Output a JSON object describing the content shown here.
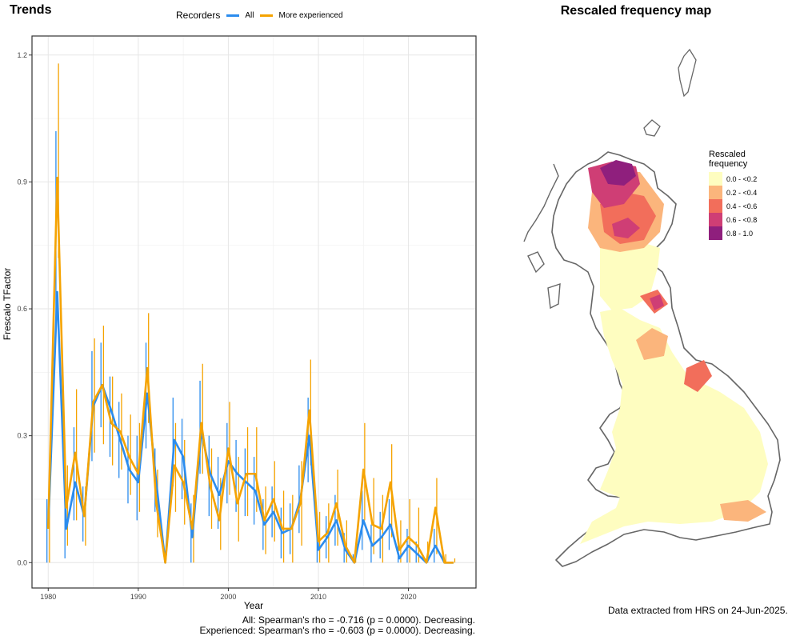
{
  "left_panel": {
    "title": "Trends",
    "legend": {
      "title": "Recorders",
      "entries": [
        {
          "label": "All",
          "color": "#2b8cee"
        },
        {
          "label": "More experienced",
          "color": "#f5a300"
        }
      ]
    },
    "stats": [
      "All: Spearman's rho = -0.716 (p = 0.0000). Decreasing.",
      "Experienced: Spearman's rho = -0.603 (p = 0.0000). Decreasing."
    ]
  },
  "right_panel": {
    "title": "Rescaled frequency map",
    "legend": {
      "title_line1": "Rescaled",
      "title_line2": "frequency",
      "entries": [
        {
          "label": "0.0 - <0.2",
          "color": "#fefdc0"
        },
        {
          "label": "0.2 - <0.4",
          "color": "#fbb57c"
        },
        {
          "label": "0.4 - <0.6",
          "color": "#f26e5b"
        },
        {
          "label": "0.6 - <0.8",
          "color": "#cf3e75"
        },
        {
          "label": "0.8 - 1.0",
          "color": "#8f1f7d"
        }
      ]
    },
    "footer": "Data extracted from HRS on 24-Jun-2025."
  },
  "chart_data": {
    "type": "line",
    "title": "Trends",
    "xlabel": "Year",
    "ylabel": "Frescalo TFactor",
    "xlim": [
      1978.2,
      2027.5
    ],
    "ylim": [
      -0.06,
      1.245
    ],
    "xticks": [
      1980,
      1990,
      2000,
      2010,
      2020
    ],
    "xtick_labels": [
      "1980",
      "1990",
      "2000",
      "2010",
      "2020"
    ],
    "yticks": [
      0.0,
      0.3,
      0.6,
      0.9,
      1.2
    ],
    "ytick_labels": [
      "0.0",
      "0.3",
      "0.6",
      "0.9",
      "1.2"
    ],
    "grid": true,
    "legend_position": "top",
    "x": [
      1980,
      1981,
      1982,
      1983,
      1984,
      1985,
      1986,
      1987,
      1988,
      1989,
      1990,
      1991,
      1992,
      1993,
      1994,
      1995,
      1996,
      1997,
      1998,
      1999,
      2000,
      2001,
      2002,
      2003,
      2004,
      2005,
      2006,
      2007,
      2008,
      2009,
      2010,
      2011,
      2012,
      2013,
      2014,
      2015,
      2016,
      2017,
      2018,
      2019,
      2020,
      2021,
      2022,
      2023,
      2024,
      2025
    ],
    "series": [
      {
        "name": "All",
        "color": "#2b8cee",
        "values": [
          0.08,
          0.64,
          0.08,
          0.19,
          0.11,
          0.37,
          0.42,
          0.36,
          0.29,
          0.22,
          0.19,
          0.4,
          0.19,
          0.0,
          0.29,
          0.25,
          0.06,
          0.31,
          0.21,
          0.16,
          0.24,
          0.21,
          0.19,
          0.17,
          0.09,
          0.12,
          0.07,
          0.08,
          0.15,
          0.3,
          0.03,
          0.06,
          0.1,
          0.03,
          0.0,
          0.1,
          0.04,
          0.06,
          0.09,
          0.01,
          0.04,
          0.02,
          0.0,
          0.04,
          0.0,
          0.0
        ],
        "err_low": [
          0.0,
          0.55,
          0.01,
          0.1,
          0.05,
          0.24,
          0.32,
          0.25,
          0.2,
          0.14,
          0.1,
          0.27,
          0.12,
          0.0,
          0.18,
          0.15,
          0.0,
          0.21,
          0.11,
          0.08,
          0.14,
          0.12,
          0.11,
          0.09,
          0.03,
          0.06,
          0.01,
          0.02,
          0.07,
          0.19,
          0.0,
          0.01,
          0.04,
          0.0,
          0.0,
          0.03,
          0.0,
          0.01,
          0.03,
          0.0,
          0.0,
          0.0,
          0.0,
          0.0,
          0.0,
          0.0
        ],
        "err_high": [
          0.15,
          1.02,
          0.17,
          0.32,
          0.18,
          0.5,
          0.52,
          0.44,
          0.38,
          0.3,
          0.3,
          0.52,
          0.27,
          0.0,
          0.39,
          0.34,
          0.14,
          0.43,
          0.3,
          0.25,
          0.33,
          0.29,
          0.27,
          0.25,
          0.15,
          0.18,
          0.13,
          0.14,
          0.23,
          0.39,
          0.07,
          0.11,
          0.16,
          0.07,
          0.02,
          0.17,
          0.09,
          0.12,
          0.15,
          0.04,
          0.08,
          0.05,
          0.01,
          0.08,
          0.0,
          0.0
        ]
      },
      {
        "name": "More experienced",
        "color": "#f5a300",
        "values": [
          0.08,
          0.91,
          0.13,
          0.26,
          0.11,
          0.38,
          0.42,
          0.33,
          0.31,
          0.25,
          0.21,
          0.46,
          0.14,
          0.0,
          0.23,
          0.19,
          0.08,
          0.33,
          0.18,
          0.1,
          0.27,
          0.14,
          0.21,
          0.21,
          0.1,
          0.15,
          0.08,
          0.08,
          0.14,
          0.36,
          0.05,
          0.07,
          0.14,
          0.04,
          0.0,
          0.22,
          0.09,
          0.08,
          0.19,
          0.03,
          0.06,
          0.04,
          0.0,
          0.13,
          0.0,
          0.0
        ],
        "err_low": [
          0.0,
          0.72,
          0.04,
          0.1,
          0.04,
          0.26,
          0.28,
          0.23,
          0.22,
          0.16,
          0.12,
          0.33,
          0.06,
          0.0,
          0.12,
          0.09,
          0.0,
          0.21,
          0.08,
          0.03,
          0.16,
          0.05,
          0.11,
          0.12,
          0.02,
          0.05,
          0.0,
          0.0,
          0.04,
          0.23,
          0.0,
          0.0,
          0.04,
          0.0,
          0.0,
          0.1,
          0.02,
          0.0,
          0.06,
          0.0,
          0.0,
          0.0,
          0.0,
          0.02,
          0.0,
          0.0
        ],
        "err_high": [
          0.14,
          1.18,
          0.23,
          0.41,
          0.18,
          0.53,
          0.56,
          0.44,
          0.4,
          0.35,
          0.33,
          0.59,
          0.22,
          0.0,
          0.33,
          0.29,
          0.16,
          0.47,
          0.27,
          0.2,
          0.38,
          0.25,
          0.32,
          0.32,
          0.18,
          0.24,
          0.17,
          0.16,
          0.24,
          0.48,
          0.12,
          0.14,
          0.22,
          0.1,
          0.01,
          0.33,
          0.2,
          0.16,
          0.28,
          0.1,
          0.15,
          0.13,
          0.05,
          0.2,
          0.02,
          0.01
        ]
      }
    ]
  }
}
